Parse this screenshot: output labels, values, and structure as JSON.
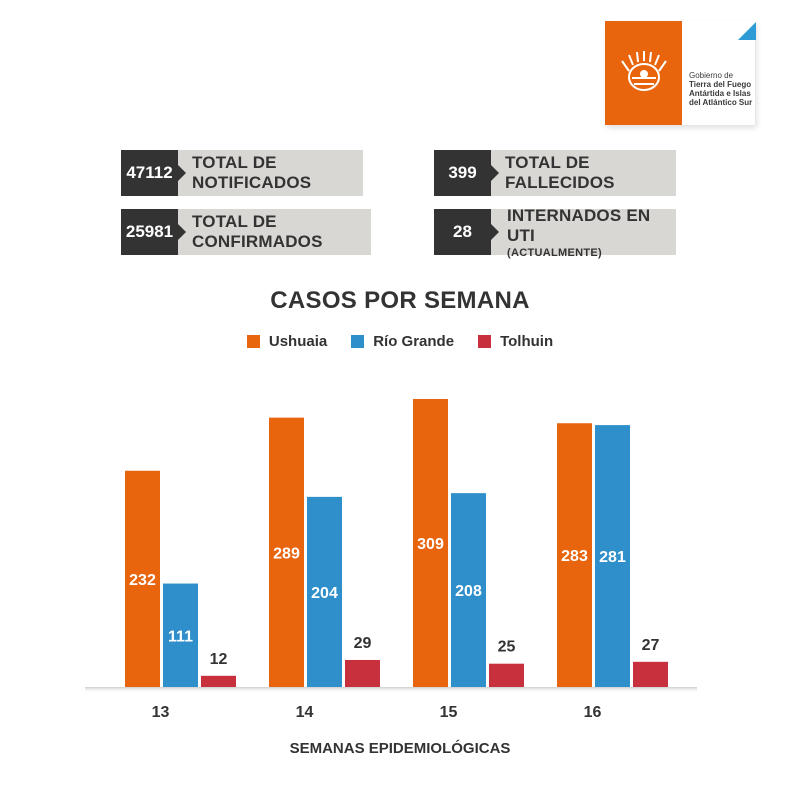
{
  "logo": {
    "lines": [
      "Gobierno de",
      "Tierra del Fuego",
      "Antártida e Islas",
      "del Atlántico Sur"
    ],
    "brand_color": "#E8650E",
    "accent_color": "#2E9BD6"
  },
  "stats": {
    "notificados": {
      "value": "47112",
      "label": "TOTAL DE NOTIFICADOS"
    },
    "confirmados": {
      "value": "25981",
      "label": "TOTAL DE CONFIRMADOS"
    },
    "fallecidos": {
      "value": "399",
      "label": "TOTAL DE FALLECIDOS"
    },
    "uti": {
      "value": "28",
      "label": "INTERNADOS EN UTI",
      "sublabel": "(ACTUALMENTE)"
    }
  },
  "chart_data": {
    "type": "bar",
    "title": "CASOS POR SEMANA",
    "xlabel": "SEMANAS EPIDEMIOLÓGICAS",
    "ylabel": "",
    "categories": [
      "13",
      "14",
      "15",
      "16"
    ],
    "series": [
      {
        "name": "Ushuaia",
        "color": "#E8650E",
        "values": [
          232,
          289,
          309,
          283
        ]
      },
      {
        "name": "Río Grande",
        "color": "#2E8FCB",
        "values": [
          111,
          204,
          208,
          281
        ]
      },
      {
        "name": "Tolhuin",
        "color": "#C8303D",
        "values": [
          12,
          29,
          25,
          27
        ]
      }
    ],
    "ylim": [
      0,
      309
    ],
    "grid": false,
    "legend": "top-center"
  }
}
